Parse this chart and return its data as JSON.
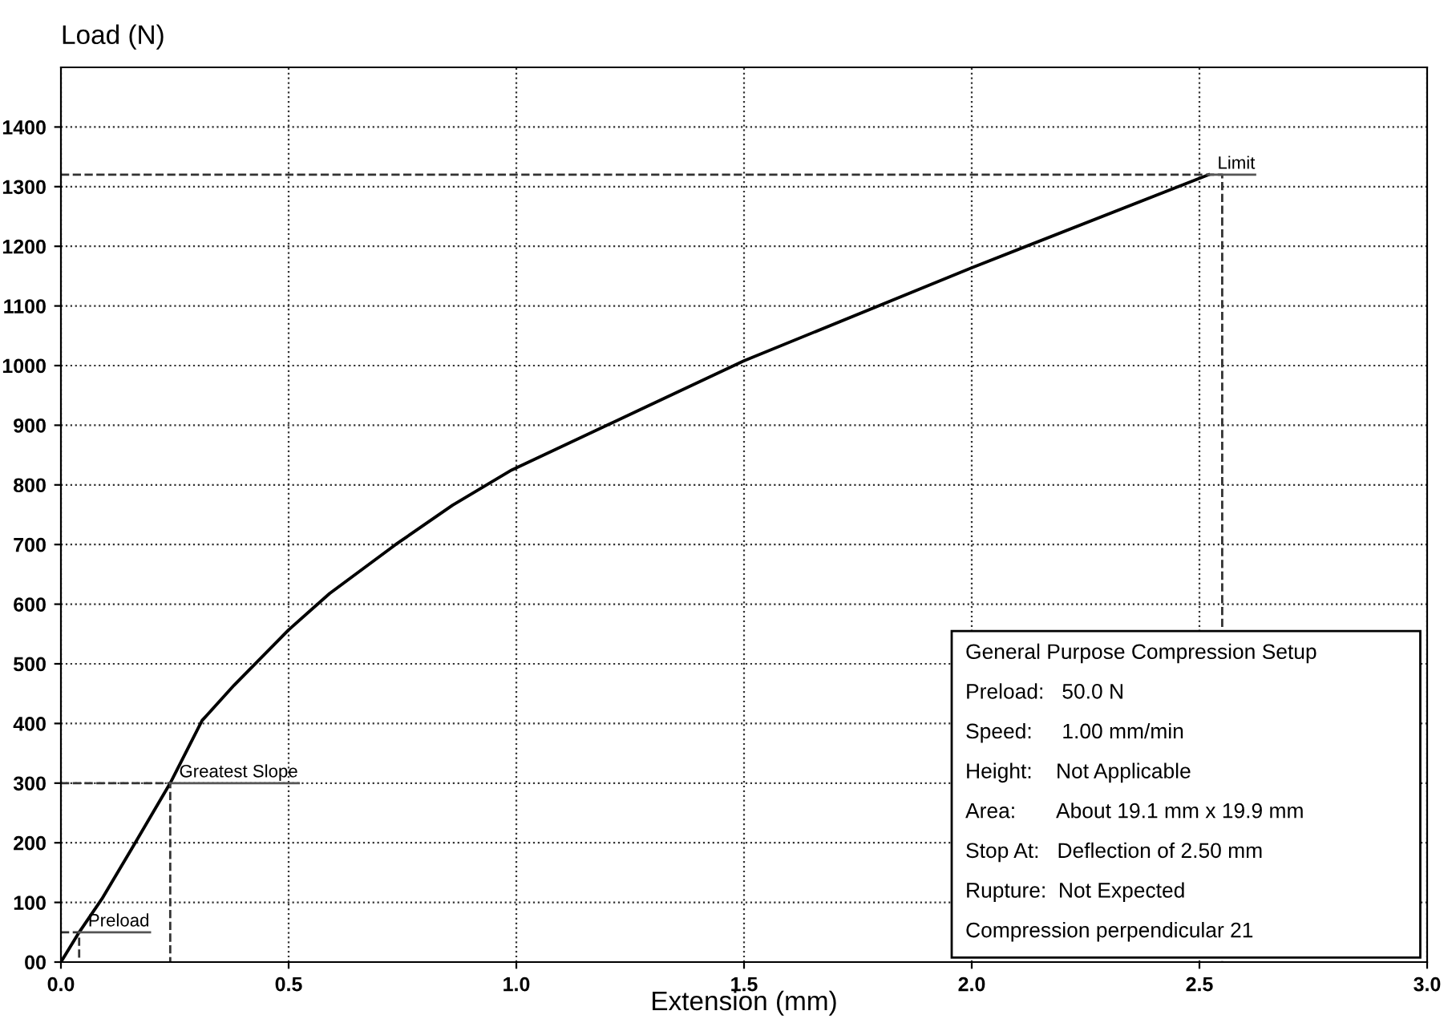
{
  "chart_data": {
    "type": "line",
    "xlabel": "Extension (mm)",
    "ylabel": "Load (N)",
    "x": [
      0,
      0.04,
      0.09,
      0.16,
      0.24,
      0.31,
      0.38,
      0.5,
      0.59,
      0.735,
      0.86,
      0.99,
      1.5,
      2.0,
      2.52
    ],
    "series": [
      {
        "color": "#000000",
        "values": [
          0,
          50,
          106,
          196,
          300,
          405,
          464,
          557,
          618,
          700,
          766,
          825,
          1008,
          1164,
          1320
        ]
      },
      {
        "color": "#333333",
        "line_style": "dashed",
        "x": [
          0,
          0.24,
          0.24
        ],
        "values": [
          300,
          300,
          0
        ]
      },
      {
        "color": "#333333",
        "line_style": "dashed",
        "x": [
          0,
          2.55,
          2.55
        ],
        "values": [
          1320,
          1320,
          0
        ]
      }
    ],
    "xlim": [
      0,
      3
    ],
    "ylim": [
      0,
      1500
    ],
    "xticks": [
      {
        "value": 0,
        "label": "0.0"
      },
      0.5,
      {
        "value": 1,
        "label": "1.0"
      },
      1.5,
      {
        "value": 2,
        "label": "2.0"
      },
      2.5,
      {
        "value": 3,
        "label": "3.0"
      }
    ],
    "yticks": [
      {
        "value": 0,
        "label": "00"
      },
      100,
      200,
      300,
      400,
      500,
      600,
      700,
      800,
      900,
      1000,
      1100,
      1200,
      1300,
      1400
    ],
    "grid": true,
    "marker": "none",
    "line_style": "solid",
    "annotations": [
      {
        "text": "Preload",
        "x": 0.04,
        "y": 50
      },
      {
        "text": "Greatest Slope",
        "x": 0.24,
        "y": 300
      },
      {
        "text": "Limit",
        "x": 2.52,
        "y": 1320
      },
      "General Purpose Compression Setup",
      "Preload:   50.0 N",
      "Speed:     1.00 mm/min",
      "Height:    Not Applicable",
      "Area:       About 19.1 mm x 19.9 mm",
      "Stop At:   Deflection of 2.50 mm",
      "Rupture:  Not Expected",
      "Compression perpendicular 21"
    ]
  }
}
